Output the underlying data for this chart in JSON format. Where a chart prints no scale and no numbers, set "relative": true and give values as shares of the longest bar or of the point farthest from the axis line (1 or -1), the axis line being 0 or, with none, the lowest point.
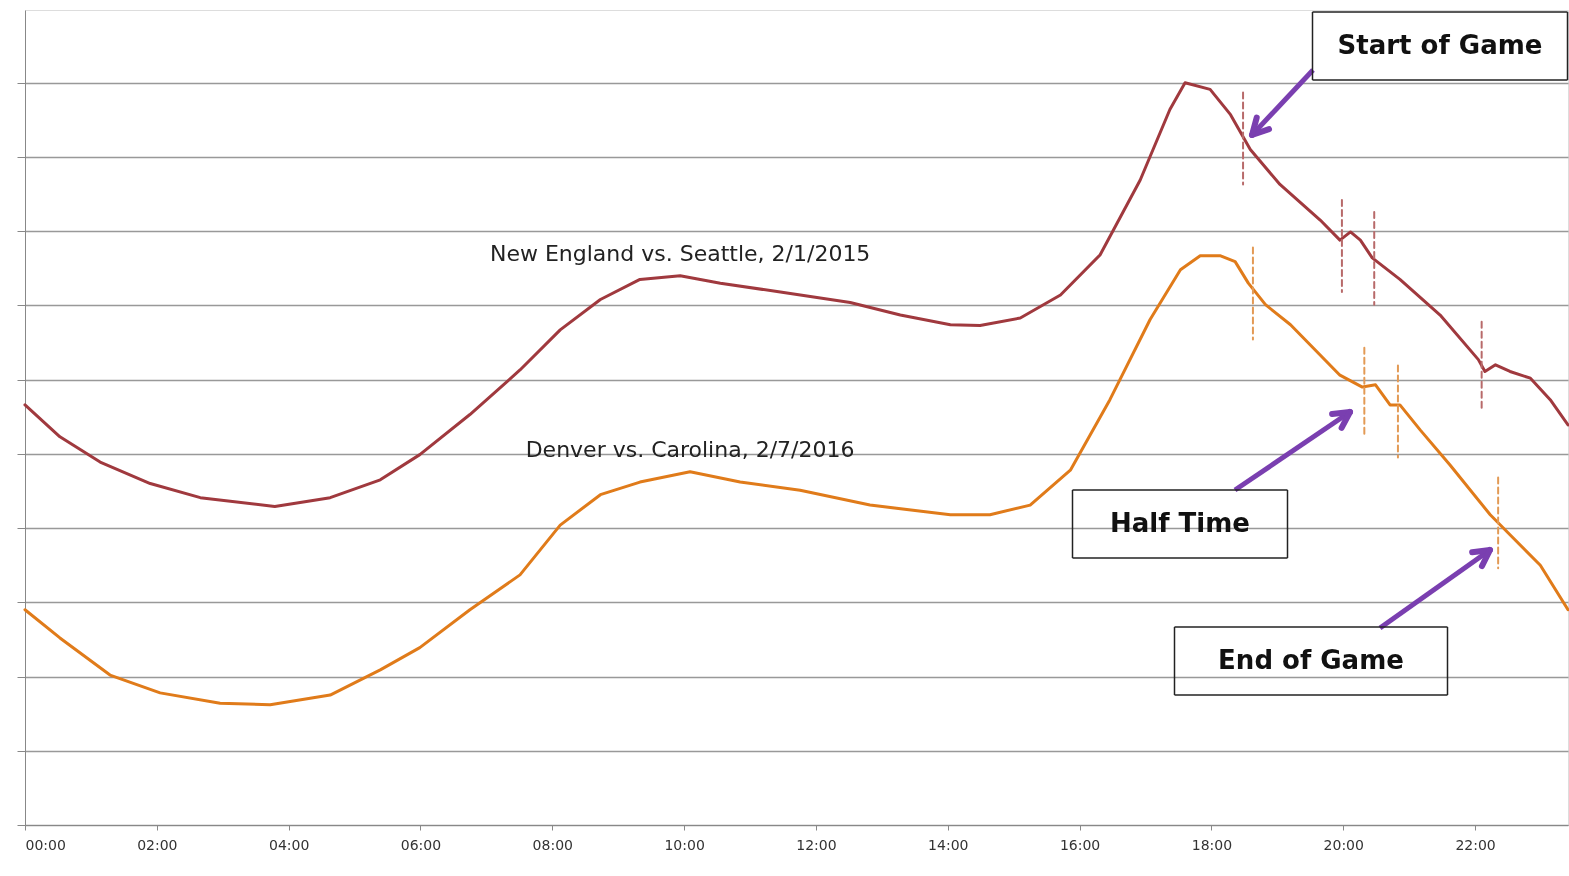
{
  "chart_data": {
    "type": "line",
    "relative": true,
    "xlim": [
      0,
      23.41
    ],
    "xticks": [
      {
        "value": 0,
        "label": "00:00"
      },
      {
        "value": 2,
        "label": "02:00"
      },
      {
        "value": 4,
        "label": "04:00"
      },
      {
        "value": 6,
        "label": "06:00"
      },
      {
        "value": 8,
        "label": "08:00"
      },
      {
        "value": 10,
        "label": "10:00"
      },
      {
        "value": 12,
        "label": "12:00"
      },
      {
        "value": 14,
        "label": "14:00"
      },
      {
        "value": 16,
        "label": "16:00"
      },
      {
        "value": 18,
        "label": "18:00"
      },
      {
        "value": 20,
        "label": "20:00"
      },
      {
        "value": 22,
        "label": "22:00"
      }
    ],
    "grid": "y",
    "marker": "none",
    "line_style": "solid",
    "series": [
      {
        "name": "New England vs. Seattle, 2/1/2015",
        "color": "#a0393e",
        "x": [
          0,
          0.53,
          1.14,
          1.9,
          2.66,
          3.79,
          4.63,
          5.39,
          5.99,
          6.75,
          7.51,
          8.12,
          8.73,
          9.33,
          9.94,
          10.55,
          11.46,
          12.52,
          13.28,
          14.04,
          14.49,
          15.1,
          15.71,
          16.31,
          16.92,
          17.37,
          17.6,
          17.98,
          18.29,
          18.59,
          19.04,
          19.65,
          19.95,
          20.11,
          20.26,
          20.44,
          20.86,
          21.47,
          22.05,
          22.15,
          22.31,
          22.53,
          22.84,
          23.14,
          23.41
        ],
        "values": [
          0.566,
          0.523,
          0.489,
          0.46,
          0.441,
          0.429,
          0.441,
          0.465,
          0.499,
          0.553,
          0.613,
          0.667,
          0.708,
          0.735,
          0.74,
          0.73,
          0.718,
          0.704,
          0.687,
          0.674,
          0.673,
          0.683,
          0.714,
          0.768,
          0.869,
          0.964,
          1.0,
          0.991,
          0.957,
          0.91,
          0.863,
          0.815,
          0.788,
          0.799,
          0.788,
          0.764,
          0.735,
          0.687,
          0.627,
          0.611,
          0.62,
          0.611,
          0.602,
          0.573,
          0.539
        ]
      },
      {
        "name": "Denver vs. Carolina, 2/7/2016",
        "color": "#e07b1a",
        "x": [
          0,
          0.53,
          1.29,
          2.05,
          2.96,
          3.72,
          4.63,
          5.39,
          5.99,
          6.75,
          7.51,
          8.12,
          8.73,
          9.33,
          10.09,
          10.85,
          11.76,
          12.82,
          14.04,
          14.64,
          15.25,
          15.86,
          16.46,
          17.07,
          17.53,
          17.83,
          18.13,
          18.36,
          18.56,
          18.82,
          19.2,
          19.95,
          20.29,
          20.49,
          20.71,
          20.86,
          21.17,
          21.62,
          22.23,
          22.53,
          22.99,
          23.41
        ],
        "values": [
          0.29,
          0.252,
          0.202,
          0.178,
          0.164,
          0.162,
          0.175,
          0.209,
          0.239,
          0.29,
          0.337,
          0.404,
          0.445,
          0.462,
          0.476,
          0.462,
          0.451,
          0.431,
          0.418,
          0.418,
          0.431,
          0.478,
          0.573,
          0.681,
          0.748,
          0.767,
          0.767,
          0.759,
          0.73,
          0.701,
          0.674,
          0.606,
          0.59,
          0.593,
          0.566,
          0.566,
          0.532,
          0.485,
          0.418,
          0.391,
          0.35,
          0.29
        ]
      },
      {
        "type": "line",
        "line_style": "dashed",
        "color": "#b86a6a",
        "x": [
          18.48,
          18.48
        ],
        "values": [
          0.987,
          0.863
        ]
      },
      {
        "type": "line",
        "line_style": "dashed",
        "color": "#b86a6a",
        "x": [
          19.98,
          19.98
        ],
        "values": [
          0.842,
          0.718
        ]
      },
      {
        "type": "line",
        "line_style": "dashed",
        "color": "#b86a6a",
        "x": [
          20.47,
          20.47
        ],
        "values": [
          0.826,
          0.701
        ]
      },
      {
        "type": "line",
        "line_style": "dashed",
        "color": "#b86a6a",
        "x": [
          22.1,
          22.1
        ],
        "values": [
          0.678,
          0.557
        ]
      },
      {
        "type": "line",
        "line_style": "dashed",
        "color": "#e39a55",
        "x": [
          18.63,
          18.63
        ],
        "values": [
          0.778,
          0.654
        ]
      },
      {
        "type": "line",
        "line_style": "dashed",
        "color": "#e39a55",
        "x": [
          20.32,
          20.32
        ],
        "values": [
          0.643,
          0.522
        ]
      },
      {
        "type": "line",
        "line_style": "dashed",
        "color": "#e39a55",
        "x": [
          20.83,
          20.83
        ],
        "values": [
          0.619,
          0.495
        ]
      },
      {
        "type": "line",
        "line_style": "dashed",
        "color": "#e39a55",
        "x": [
          22.35,
          22.35
        ],
        "values": [
          0.468,
          0.346
        ]
      }
    ],
    "annotations": [
      "Start of Game",
      "Half Time",
      "End of Game"
    ]
  }
}
